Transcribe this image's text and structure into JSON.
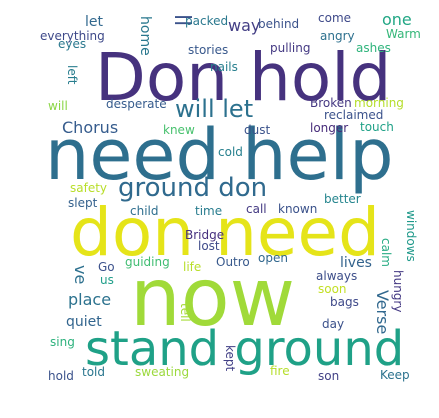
{
  "words": [
    {
      "text": "Don hold",
      "color": "#46327e"
    },
    {
      "text": "need help",
      "color": "#2e6f8e"
    },
    {
      "text": "don need",
      "color": "#e5e419"
    },
    {
      "text": "now",
      "color": "#a0da39"
    },
    {
      "text": "stand ground",
      "color": "#1fa187"
    },
    {
      "text": "ground don",
      "color": "#306a8e"
    },
    {
      "text": "will let",
      "color": "#2c718e"
    },
    {
      "text": "Chorus",
      "color": "#365c8d"
    },
    {
      "text": "let",
      "color": "#31688e"
    },
    {
      "text": "home",
      "color": "#2a788e"
    },
    {
      "text": "ll",
      "color": "#3b528b"
    },
    {
      "text": "way",
      "color": "#433e85"
    },
    {
      "text": "one",
      "color": "#22a785"
    },
    {
      "text": "packed",
      "color": "#2a788e"
    },
    {
      "text": "behind",
      "color": "#3b528b"
    },
    {
      "text": "come",
      "color": "#3e4989"
    },
    {
      "text": "angry",
      "color": "#2d708e"
    },
    {
      "text": "Warm",
      "color": "#35b779"
    },
    {
      "text": "everything",
      "color": "#3e4989"
    },
    {
      "text": "eyes",
      "color": "#2a788e"
    },
    {
      "text": "stories",
      "color": "#38588c"
    },
    {
      "text": "pulling",
      "color": "#443983"
    },
    {
      "text": "ashes",
      "color": "#2fb47c"
    },
    {
      "text": "left",
      "color": "#287d8e"
    },
    {
      "text": "nails",
      "color": "#277f8e"
    },
    {
      "text": "will",
      "color": "#8bd646"
    },
    {
      "text": "desperate",
      "color": "#365c8d"
    },
    {
      "text": "Broken",
      "color": "#453882"
    },
    {
      "text": "morning",
      "color": "#b5de2b"
    },
    {
      "text": "reclaimed",
      "color": "#3b528b"
    },
    {
      "text": "longer",
      "color": "#472c7a"
    },
    {
      "text": "touch",
      "color": "#1fa187"
    },
    {
      "text": "knew",
      "color": "#48c16e"
    },
    {
      "text": "dust",
      "color": "#3b528b"
    },
    {
      "text": "cold",
      "color": "#27808e"
    },
    {
      "text": "safety",
      "color": "#b8de29"
    },
    {
      "text": "better",
      "color": "#25858e"
    },
    {
      "text": "slept",
      "color": "#34618d"
    },
    {
      "text": "child",
      "color": "#2e6e8e"
    },
    {
      "text": "time",
      "color": "#287c8e"
    },
    {
      "text": "call",
      "color": "#443a83"
    },
    {
      "text": "known",
      "color": "#3b528b"
    },
    {
      "text": "windows",
      "color": "#1f998a"
    },
    {
      "text": "calm",
      "color": "#25ab82"
    },
    {
      "text": "Bridge",
      "color": "#46307e"
    },
    {
      "text": "lost",
      "color": "#3e4a89"
    },
    {
      "text": "ve",
      "color": "#2d708e"
    },
    {
      "text": "guiding",
      "color": "#40bd72"
    },
    {
      "text": "Outro",
      "color": "#38598c"
    },
    {
      "text": "open",
      "color": "#31678e"
    },
    {
      "text": "lives",
      "color": "#33638d"
    },
    {
      "text": "Go",
      "color": "#3b518b"
    },
    {
      "text": "life",
      "color": "#b8de29"
    },
    {
      "text": "us",
      "color": "#1f9e89"
    },
    {
      "text": "always",
      "color": "#3d4e8a"
    },
    {
      "text": "soon",
      "color": "#c2df23"
    },
    {
      "text": "hungry",
      "color": "#443983"
    },
    {
      "text": "place",
      "color": "#2c728e"
    },
    {
      "text": "bags",
      "color": "#3e4989"
    },
    {
      "text": "Verse",
      "color": "#31688e"
    },
    {
      "text": "quiet",
      "color": "#32658e"
    },
    {
      "text": "day",
      "color": "#3b518b"
    },
    {
      "text": "tell",
      "color": "#a5db36"
    },
    {
      "text": "sing",
      "color": "#2db27d"
    },
    {
      "text": "kept",
      "color": "#424086"
    },
    {
      "text": "hold",
      "color": "#3b528b"
    },
    {
      "text": "told",
      "color": "#2a768e"
    },
    {
      "text": "sweating",
      "color": "#9bd93c"
    },
    {
      "text": "fire",
      "color": "#b5de2b"
    },
    {
      "text": "son",
      "color": "#424186"
    },
    {
      "text": "Keep",
      "color": "#2c728e"
    }
  ]
}
